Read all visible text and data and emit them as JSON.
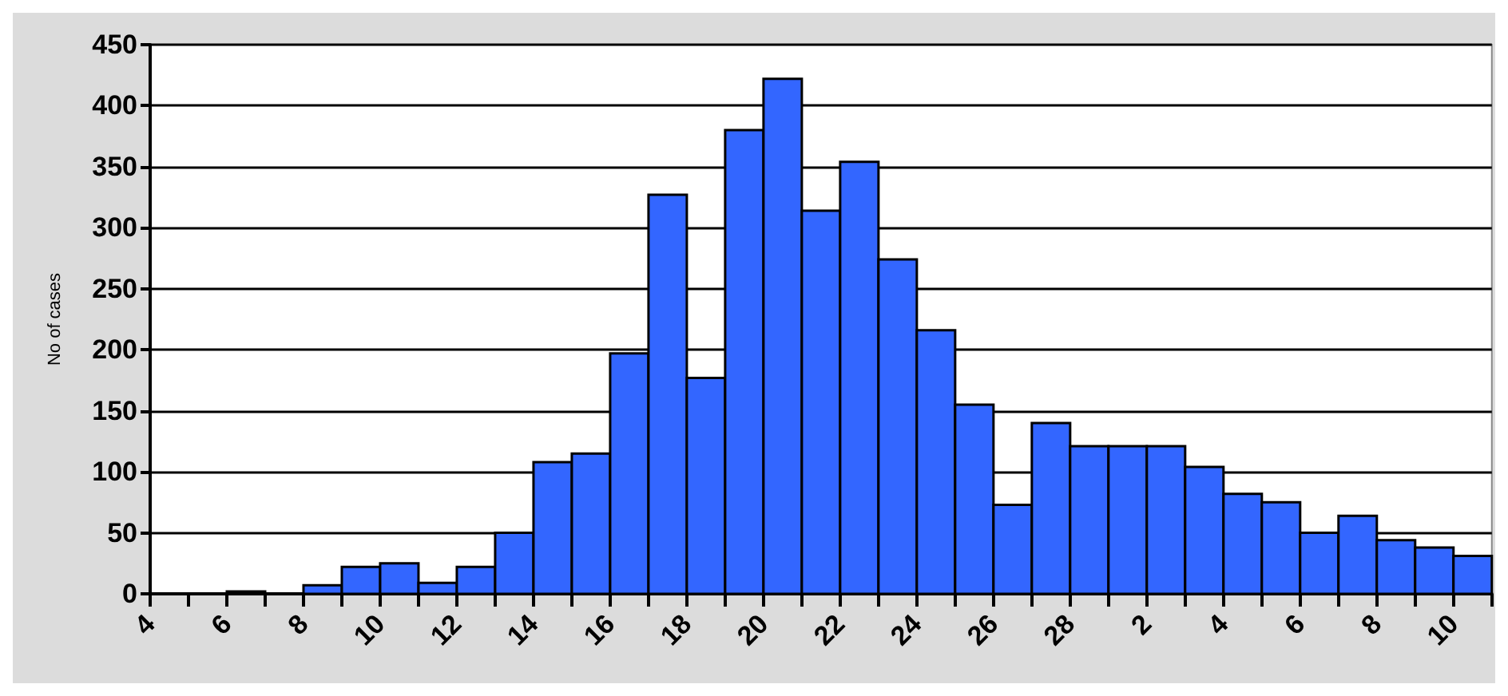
{
  "chart_data": {
    "type": "histogram",
    "ylabel": "No of cases",
    "bins": [
      "--02-04",
      "--02-05",
      "--02-06",
      "--02-07",
      "--02-08",
      "--02-09",
      "--02-10",
      "--02-11",
      "--02-12",
      "--02-13",
      "--02-14",
      "--02-15",
      "--02-16",
      "--02-17",
      "--02-18",
      "--02-19",
      "--02-20",
      "--02-21",
      "--02-22",
      "--02-23",
      "--02-24",
      "--02-25",
      "--02-26",
      "--02-27",
      "--02-28",
      "--03-01",
      "--03-02",
      "--03-03",
      "--03-04",
      "--03-05",
      "--03-06",
      "--03-07",
      "--03-08",
      "--03-09",
      "--03-10",
      "--03-11"
    ],
    "values": [
      0,
      0,
      2,
      0,
      7,
      22,
      25,
      9,
      22,
      50,
      108,
      115,
      197,
      327,
      177,
      380,
      422,
      314,
      354,
      274,
      216,
      155,
      73,
      140,
      121,
      121,
      121,
      104,
      82,
      75,
      50,
      64,
      44,
      38,
      31
    ],
    "color": "#3366ff",
    "xlim": [
      "--02-04",
      "--03-11"
    ],
    "xticks": [
      {
        "value": "--02-04",
        "label": "4"
      },
      {
        "value": "--02-05",
        "label": null
      },
      {
        "value": "--02-06",
        "label": "6"
      },
      {
        "value": "--02-07",
        "label": null
      },
      {
        "value": "--02-08",
        "label": "8"
      },
      {
        "value": "--02-09",
        "label": null
      },
      {
        "value": "--02-10",
        "label": "10"
      },
      {
        "value": "--02-11",
        "label": null
      },
      {
        "value": "--02-12",
        "label": "12"
      },
      {
        "value": "--02-13",
        "label": null
      },
      {
        "value": "--02-14",
        "label": "14"
      },
      {
        "value": "--02-15",
        "label": null
      },
      {
        "value": "--02-16",
        "label": "16"
      },
      {
        "value": "--02-17",
        "label": null
      },
      {
        "value": "--02-18",
        "label": "18"
      },
      {
        "value": "--02-19",
        "label": null
      },
      {
        "value": "--02-20",
        "label": "20"
      },
      {
        "value": "--02-21",
        "label": null
      },
      {
        "value": "--02-22",
        "label": "22"
      },
      {
        "value": "--02-23",
        "label": null
      },
      {
        "value": "--02-24",
        "label": "24"
      },
      {
        "value": "--02-25",
        "label": null
      },
      {
        "value": "--02-26",
        "label": "26"
      },
      {
        "value": "--02-27",
        "label": null
      },
      {
        "value": "--02-28",
        "label": "28"
      },
      {
        "value": "--03-01",
        "label": null
      },
      {
        "value": "--03-02",
        "label": "2"
      },
      {
        "value": "--03-03",
        "label": null
      },
      {
        "value": "--03-04",
        "label": "4"
      },
      {
        "value": "--03-05",
        "label": null
      },
      {
        "value": "--03-06",
        "label": "6"
      },
      {
        "value": "--03-07",
        "label": null
      },
      {
        "value": "--03-08",
        "label": "8"
      },
      {
        "value": "--03-09",
        "label": null
      },
      {
        "value": "--03-10",
        "label": "10"
      },
      {
        "value": "--03-11",
        "label": null
      }
    ],
    "ylim": [
      0,
      450
    ],
    "yticks": [
      0,
      50,
      100,
      150,
      200,
      250,
      300,
      350,
      400,
      450
    ],
    "grid": "y"
  }
}
